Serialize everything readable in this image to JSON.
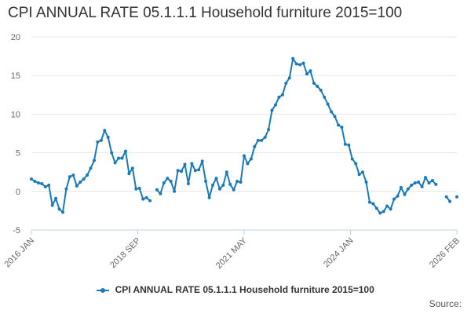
{
  "chart_data": {
    "type": "line",
    "title": "CPI ANNUAL RATE 05.1.1.1 Household furniture 2015=100",
    "xlabel": "",
    "ylabel": "",
    "ylim": [
      -5,
      20
    ],
    "yticks": [
      "20",
      "15",
      "10",
      "5",
      "0",
      "-5"
    ],
    "xticks": [
      "2016 JAN",
      "2018 SEP",
      "2021 MAY",
      "2024 JAN",
      "2026 FEB"
    ],
    "x_range": [
      "2016-01",
      "2026-02"
    ],
    "grid": true,
    "legend_position": "bottom",
    "series": [
      {
        "name": "CPI ANNUAL RATE 05.1.1.1 Household furniture 2015=100",
        "color": "#1a7ab8",
        "points": [
          [
            "2016-01",
            1.6
          ],
          [
            "2016-02",
            1.3
          ],
          [
            "2016-03",
            1.1
          ],
          [
            "2016-04",
            1.0
          ],
          [
            "2016-05",
            0.6
          ],
          [
            "2016-06",
            0.8
          ],
          [
            "2016-07",
            -1.8
          ],
          [
            "2016-08",
            -0.9
          ],
          [
            "2016-09",
            -2.3
          ],
          [
            "2016-10",
            -2.7
          ],
          [
            "2016-11",
            0.3
          ],
          [
            "2016-12",
            1.9
          ],
          [
            "2017-01",
            2.1
          ],
          [
            "2017-02",
            0.7
          ],
          [
            "2017-03",
            1.2
          ],
          [
            "2017-04",
            1.6
          ],
          [
            "2017-05",
            2.1
          ],
          [
            "2017-06",
            3.0
          ],
          [
            "2017-07",
            4.0
          ],
          [
            "2017-08",
            6.4
          ],
          [
            "2017-09",
            6.6
          ],
          [
            "2017-10",
            7.9
          ],
          [
            "2017-11",
            7.0
          ],
          [
            "2017-12",
            5.0
          ],
          [
            "2018-01",
            3.7
          ],
          [
            "2018-02",
            4.3
          ],
          [
            "2018-03",
            4.3
          ],
          [
            "2018-04",
            5.2
          ],
          [
            "2018-05",
            2.3
          ],
          [
            "2018-06",
            3.0
          ],
          [
            "2018-07",
            0.3
          ],
          [
            "2018-08",
            0.4
          ],
          [
            "2018-09",
            -1.0
          ],
          [
            "2018-10",
            -0.8
          ],
          [
            "2018-11",
            -1.2
          ],
          [
            "2018-12",
            null
          ],
          [
            "2019-01",
            0.2
          ],
          [
            "2019-02",
            -0.3
          ],
          [
            "2019-03",
            1.1
          ],
          [
            "2019-04",
            1.7
          ],
          [
            "2019-05",
            1.3
          ],
          [
            "2019-06",
            0.0
          ],
          [
            "2019-07",
            2.7
          ],
          [
            "2019-08",
            2.6
          ],
          [
            "2019-09",
            3.5
          ],
          [
            "2019-10",
            1.0
          ],
          [
            "2019-11",
            3.6
          ],
          [
            "2019-12",
            2.7
          ],
          [
            "2020-01",
            2.8
          ],
          [
            "2020-02",
            3.9
          ],
          [
            "2020-03",
            1.3
          ],
          [
            "2020-04",
            -0.8
          ],
          [
            "2020-05",
            0.8
          ],
          [
            "2020-06",
            1.7
          ],
          [
            "2020-07",
            0.3
          ],
          [
            "2020-08",
            0.8
          ],
          [
            "2020-09",
            2.5
          ],
          [
            "2020-10",
            0.9
          ],
          [
            "2020-11",
            0.2
          ],
          [
            "2020-12",
            1.3
          ],
          [
            "2021-01",
            1.2
          ],
          [
            "2021-02",
            4.6
          ],
          [
            "2021-03",
            3.6
          ],
          [
            "2021-04",
            4.2
          ],
          [
            "2021-05",
            5.8
          ],
          [
            "2021-06",
            6.6
          ],
          [
            "2021-07",
            6.6
          ],
          [
            "2021-08",
            7.0
          ],
          [
            "2021-09",
            8.0
          ],
          [
            "2021-10",
            10.5
          ],
          [
            "2021-11",
            11.2
          ],
          [
            "2021-12",
            12.2
          ],
          [
            "2022-01",
            12.5
          ],
          [
            "2022-02",
            14.0
          ],
          [
            "2022-03",
            14.7
          ],
          [
            "2022-04",
            17.2
          ],
          [
            "2022-05",
            16.5
          ],
          [
            "2022-06",
            16.4
          ],
          [
            "2022-07",
            16.6
          ],
          [
            "2022-08",
            15.2
          ],
          [
            "2022-09",
            15.6
          ],
          [
            "2022-10",
            14.0
          ],
          [
            "2022-11",
            13.6
          ],
          [
            "2022-12",
            13.1
          ],
          [
            "2023-01",
            12.2
          ],
          [
            "2023-02",
            11.3
          ],
          [
            "2023-03",
            10.3
          ],
          [
            "2023-04",
            9.7
          ],
          [
            "2023-05",
            8.6
          ],
          [
            "2023-06",
            8.3
          ],
          [
            "2023-07",
            6.1
          ],
          [
            "2023-08",
            6.0
          ],
          [
            "2023-09",
            4.2
          ],
          [
            "2023-10",
            3.6
          ],
          [
            "2023-11",
            2.2
          ],
          [
            "2023-12",
            2.5
          ],
          [
            "2024-01",
            1.2
          ],
          [
            "2024-02",
            -1.4
          ],
          [
            "2024-03",
            -1.6
          ],
          [
            "2024-04",
            -2.2
          ],
          [
            "2024-05",
            -2.8
          ],
          [
            "2024-06",
            -2.6
          ],
          [
            "2024-07",
            -1.9
          ],
          [
            "2024-08",
            -2.3
          ],
          [
            "2024-09",
            -1.0
          ],
          [
            "2024-10",
            -0.6
          ],
          [
            "2024-11",
            0.5
          ],
          [
            "2024-12",
            -0.4
          ],
          [
            "2025-01",
            0.3
          ],
          [
            "2025-02",
            0.8
          ],
          [
            "2025-03",
            1.1
          ],
          [
            "2025-04",
            1.2
          ],
          [
            "2025-05",
            0.6
          ],
          [
            "2025-06",
            1.8
          ],
          [
            "2025-07",
            1.1
          ],
          [
            "2025-08",
            1.4
          ],
          [
            "2025-09",
            0.9
          ],
          [
            "2025-10",
            null
          ],
          [
            "2025-11",
            null
          ],
          [
            "2025-12",
            -0.7
          ],
          [
            "2026-01",
            -1.3
          ],
          [
            "2026-02",
            null
          ],
          [
            "2026-03",
            -0.7
          ]
        ]
      }
    ]
  },
  "legend": {
    "label": "CPI ANNUAL RATE 05.1.1.1 Household furniture 2015=100"
  },
  "source_label": "Source:"
}
